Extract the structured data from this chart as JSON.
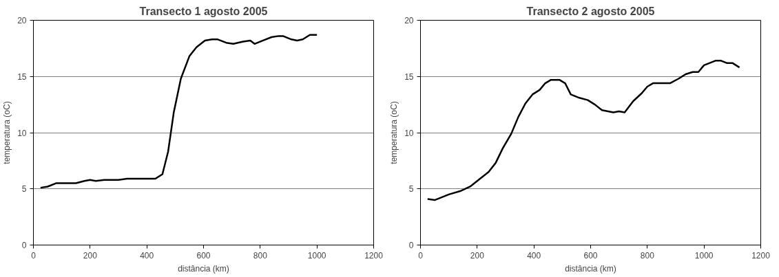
{
  "chart_data": [
    {
      "type": "line",
      "title": "Transecto 1 agosto 2005",
      "xlabel": "distância (km)",
      "ylabel": "temperatura (oC)",
      "xlim": [
        0,
        1200
      ],
      "ylim": [
        0,
        20
      ],
      "xticks": [
        0,
        200,
        400,
        600,
        800,
        1000,
        1200
      ],
      "yticks": [
        0,
        5,
        10,
        15,
        20
      ],
      "grid": "y",
      "marker": "none",
      "line_style": "solid",
      "series": [
        {
          "color": "#000000",
          "x": [
            25,
            50,
            80,
            150,
            180,
            200,
            220,
            250,
            300,
            330,
            430,
            455,
            475,
            495,
            520,
            550,
            575,
            605,
            630,
            650,
            680,
            705,
            740,
            765,
            780,
            810,
            840,
            865,
            880,
            910,
            930,
            950,
            975,
            1000
          ],
          "values": [
            5.1,
            5.2,
            5.5,
            5.5,
            5.7,
            5.8,
            5.7,
            5.8,
            5.8,
            5.9,
            5.9,
            6.3,
            8.3,
            11.8,
            14.8,
            16.8,
            17.6,
            18.2,
            18.3,
            18.3,
            18.0,
            17.9,
            18.1,
            18.2,
            17.9,
            18.2,
            18.5,
            18.6,
            18.6,
            18.3,
            18.2,
            18.3,
            18.7,
            18.7
          ]
        }
      ]
    },
    {
      "type": "line",
      "title": "Transecto 2 agosto 2005",
      "xlabel": "distância (km)",
      "ylabel": "temperatura (oC)",
      "xlim": [
        0,
        1200
      ],
      "ylim": [
        0,
        20
      ],
      "xticks": [
        0,
        200,
        400,
        600,
        800,
        1000,
        1200
      ],
      "yticks": [
        0,
        5,
        10,
        15,
        20
      ],
      "grid": "y",
      "marker": "none",
      "line_style": "solid",
      "series": [
        {
          "color": "#000000",
          "x": [
            25,
            50,
            100,
            140,
            175,
            210,
            240,
            265,
            290,
            320,
            345,
            370,
            395,
            420,
            440,
            460,
            490,
            510,
            530,
            560,
            590,
            615,
            640,
            680,
            700,
            720,
            750,
            780,
            800,
            820,
            880,
            910,
            935,
            960,
            980,
            1000,
            1040,
            1060,
            1080,
            1100,
            1125
          ],
          "values": [
            4.1,
            4.0,
            4.5,
            4.8,
            5.2,
            5.9,
            6.5,
            7.3,
            8.6,
            9.9,
            11.4,
            12.6,
            13.4,
            13.8,
            14.4,
            14.7,
            14.7,
            14.4,
            13.4,
            13.1,
            12.9,
            12.5,
            12.0,
            11.8,
            11.9,
            11.8,
            12.8,
            13.5,
            14.1,
            14.4,
            14.4,
            14.8,
            15.2,
            15.4,
            15.4,
            16.0,
            16.4,
            16.4,
            16.2,
            16.2,
            15.8
          ]
        }
      ]
    }
  ]
}
